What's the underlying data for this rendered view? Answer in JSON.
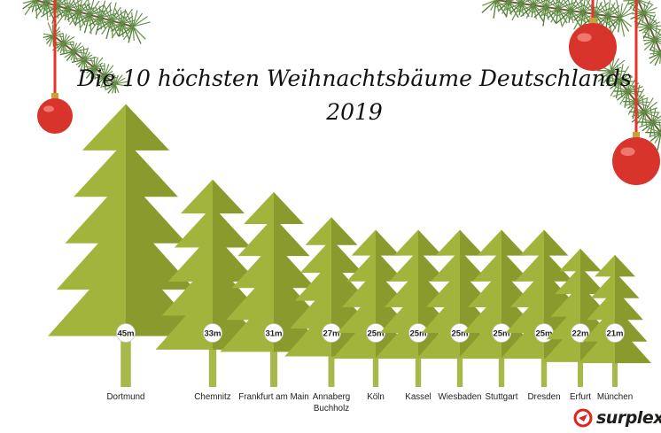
{
  "title_line1": "Die 10 höchsten Weihnachtsbäume Deutschlands",
  "title_line2": "2019",
  "brand": "surplex",
  "colors": {
    "tree_light": "#a3b43c",
    "tree_dark": "#8a9a2c",
    "trunk": "#a9b84a",
    "ornament": "#d9342b",
    "branch": "#4f7a3a",
    "ribbon": "#e53428"
  },
  "chart_data": {
    "type": "bar",
    "title": "Die 10 höchsten Weihnachtsbäume Deutschlands 2019",
    "categories": [
      "Dortmund",
      "Chemnitz",
      "Frankfurt am Main",
      "Annaberg Buchholz",
      "Köln",
      "Kassel",
      "Wiesbaden",
      "Stuttgart",
      "Dresden",
      "Erfurt",
      "München"
    ],
    "category_lines": [
      [
        "Dortmund"
      ],
      [
        "Chemnitz"
      ],
      [
        "Frankfurt am Main"
      ],
      [
        "Annaberg",
        "Buchholz"
      ],
      [
        "Köln"
      ],
      [
        "Kassel"
      ],
      [
        "Wiesbaden"
      ],
      [
        "Stuttgart"
      ],
      [
        "Dresden"
      ],
      [
        "Erfurt"
      ],
      [
        "München"
      ]
    ],
    "values": [
      45,
      33,
      31,
      27,
      25,
      25,
      25,
      25,
      25,
      22,
      21
    ],
    "unit": "m",
    "value_labels": [
      "45m",
      "33m",
      "31m",
      "27m",
      "25m",
      "25m",
      "25m",
      "25m",
      "25m",
      "22m",
      "21m"
    ],
    "xlabel": "",
    "ylabel": ""
  }
}
